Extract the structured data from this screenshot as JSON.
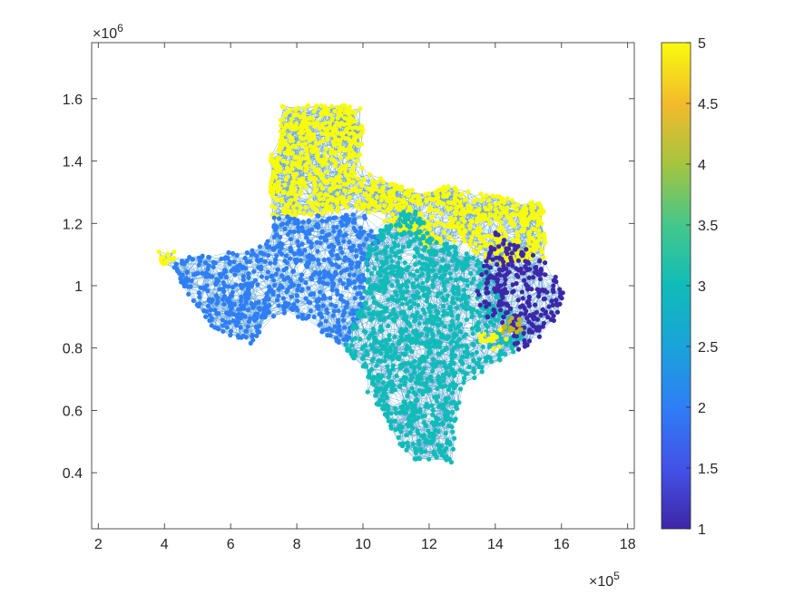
{
  "chart_data": {
    "type": "scatter",
    "subtype": "graph-network-on-map",
    "title": "",
    "xlabel": "",
    "ylabel": "",
    "x_multiplier_text": "×10",
    "x_multiplier_exp": "5",
    "y_multiplier_text": "×10",
    "y_multiplier_exp": "6",
    "xlim": [
      1.8,
      18.2
    ],
    "ylim": [
      0.22,
      1.78
    ],
    "xticks": [
      2,
      4,
      6,
      8,
      10,
      12,
      14,
      16,
      18
    ],
    "xtick_labels": [
      "2",
      "4",
      "6",
      "8",
      "10",
      "12",
      "14",
      "16",
      "18"
    ],
    "yticks": [
      0.4,
      0.6,
      0.8,
      1.0,
      1.2,
      1.4,
      1.6
    ],
    "ytick_labels": [
      "0.4",
      "0.6",
      "0.8",
      "1",
      "1.2",
      "1.4",
      "1.6"
    ],
    "grid": false,
    "edge_color": "#5aa0d0",
    "colorbar": {
      "min": 1,
      "max": 5,
      "ticks": [
        1,
        1.5,
        2,
        2.5,
        3,
        3.5,
        4,
        4.5,
        5
      ],
      "tick_labels": [
        "1",
        "1.5",
        "2",
        "2.5",
        "3",
        "3.5",
        "4",
        "4.5",
        "5"
      ],
      "colormap": "parula",
      "stops": [
        "#3e26a8",
        "#4352e8",
        "#2f7ef6",
        "#1aa3d9",
        "#10bcb8",
        "#45c78b",
        "#a5c43f",
        "#f3ba2c",
        "#f9fb0e"
      ]
    },
    "clusters": [
      {
        "value": 5,
        "color": "#f9fb0e",
        "polygon": [
          [
            7.5,
            1.58
          ],
          [
            10.0,
            1.58
          ],
          [
            10.0,
            1.38
          ],
          [
            10.8,
            1.33
          ],
          [
            11.9,
            1.3
          ],
          [
            12.5,
            1.32
          ],
          [
            14.0,
            1.29
          ],
          [
            15.5,
            1.26
          ],
          [
            15.5,
            1.09
          ],
          [
            14.2,
            1.06
          ],
          [
            13.5,
            1.1
          ],
          [
            12.8,
            1.14
          ],
          [
            12.0,
            1.11
          ],
          [
            11.0,
            1.18
          ],
          [
            10.0,
            1.24
          ],
          [
            9.0,
            1.23
          ],
          [
            7.2,
            1.22
          ],
          [
            7.2,
            1.42
          ],
          [
            7.5,
            1.45
          ]
        ]
      },
      {
        "value": 5,
        "color": "#f9fb0e",
        "polygon": [
          [
            3.8,
            1.11
          ],
          [
            4.3,
            1.11
          ],
          [
            4.3,
            1.07
          ],
          [
            3.8,
            1.07
          ]
        ]
      },
      {
        "value": 2,
        "color": "#2f7ef6",
        "polygon": [
          [
            7.3,
            1.22
          ],
          [
            9.0,
            1.23
          ],
          [
            10.0,
            1.23
          ],
          [
            10.6,
            1.17
          ],
          [
            10.1,
            1.05
          ],
          [
            10.0,
            0.93
          ],
          [
            9.5,
            0.8
          ],
          [
            9.0,
            0.82
          ],
          [
            8.5,
            0.88
          ],
          [
            7.8,
            0.91
          ],
          [
            7.2,
            0.9
          ],
          [
            6.6,
            0.8
          ],
          [
            6.0,
            0.84
          ],
          [
            5.5,
            0.86
          ],
          [
            4.8,
            0.96
          ],
          [
            4.3,
            1.03
          ],
          [
            4.3,
            1.09
          ],
          [
            5.6,
            1.1
          ],
          [
            6.6,
            1.12
          ],
          [
            7.3,
            1.16
          ]
        ]
      },
      {
        "value": 3,
        "color": "#10bcb8",
        "polygon": [
          [
            10.6,
            1.2
          ],
          [
            11.5,
            1.26
          ],
          [
            12.2,
            1.16
          ],
          [
            13.2,
            1.1
          ],
          [
            13.9,
            1.05
          ],
          [
            14.2,
            0.96
          ],
          [
            14.9,
            0.86
          ],
          [
            14.6,
            0.79
          ],
          [
            13.8,
            0.74
          ],
          [
            13.0,
            0.66
          ],
          [
            12.8,
            0.56
          ],
          [
            12.7,
            0.43
          ],
          [
            11.5,
            0.44
          ],
          [
            11.0,
            0.5
          ],
          [
            10.7,
            0.58
          ],
          [
            10.2,
            0.63
          ],
          [
            10.0,
            0.73
          ],
          [
            9.4,
            0.8
          ],
          [
            9.7,
            0.88
          ],
          [
            10.1,
            1.01
          ],
          [
            10.1,
            1.11
          ]
        ]
      },
      {
        "value": 1,
        "color": "#3e26a8",
        "polygon": [
          [
            14.0,
            1.18
          ],
          [
            14.8,
            1.13
          ],
          [
            15.5,
            1.08
          ],
          [
            16.1,
            1.0
          ],
          [
            15.9,
            0.9
          ],
          [
            15.2,
            0.82
          ],
          [
            14.6,
            0.79
          ],
          [
            14.4,
            0.87
          ],
          [
            13.6,
            0.9
          ],
          [
            13.4,
            0.98
          ],
          [
            13.7,
            1.08
          ]
        ]
      },
      {
        "value": 4,
        "color": "#c6b51f",
        "polygon": [
          [
            14.2,
            0.9
          ],
          [
            14.8,
            0.9
          ],
          [
            14.8,
            0.85
          ],
          [
            14.2,
            0.85
          ]
        ]
      },
      {
        "value": 5,
        "color": "#f9fb0e",
        "polygon": [
          [
            13.5,
            0.85
          ],
          [
            14.2,
            0.86
          ],
          [
            14.4,
            0.82
          ],
          [
            13.9,
            0.79
          ],
          [
            13.6,
            0.8
          ]
        ]
      }
    ]
  }
}
